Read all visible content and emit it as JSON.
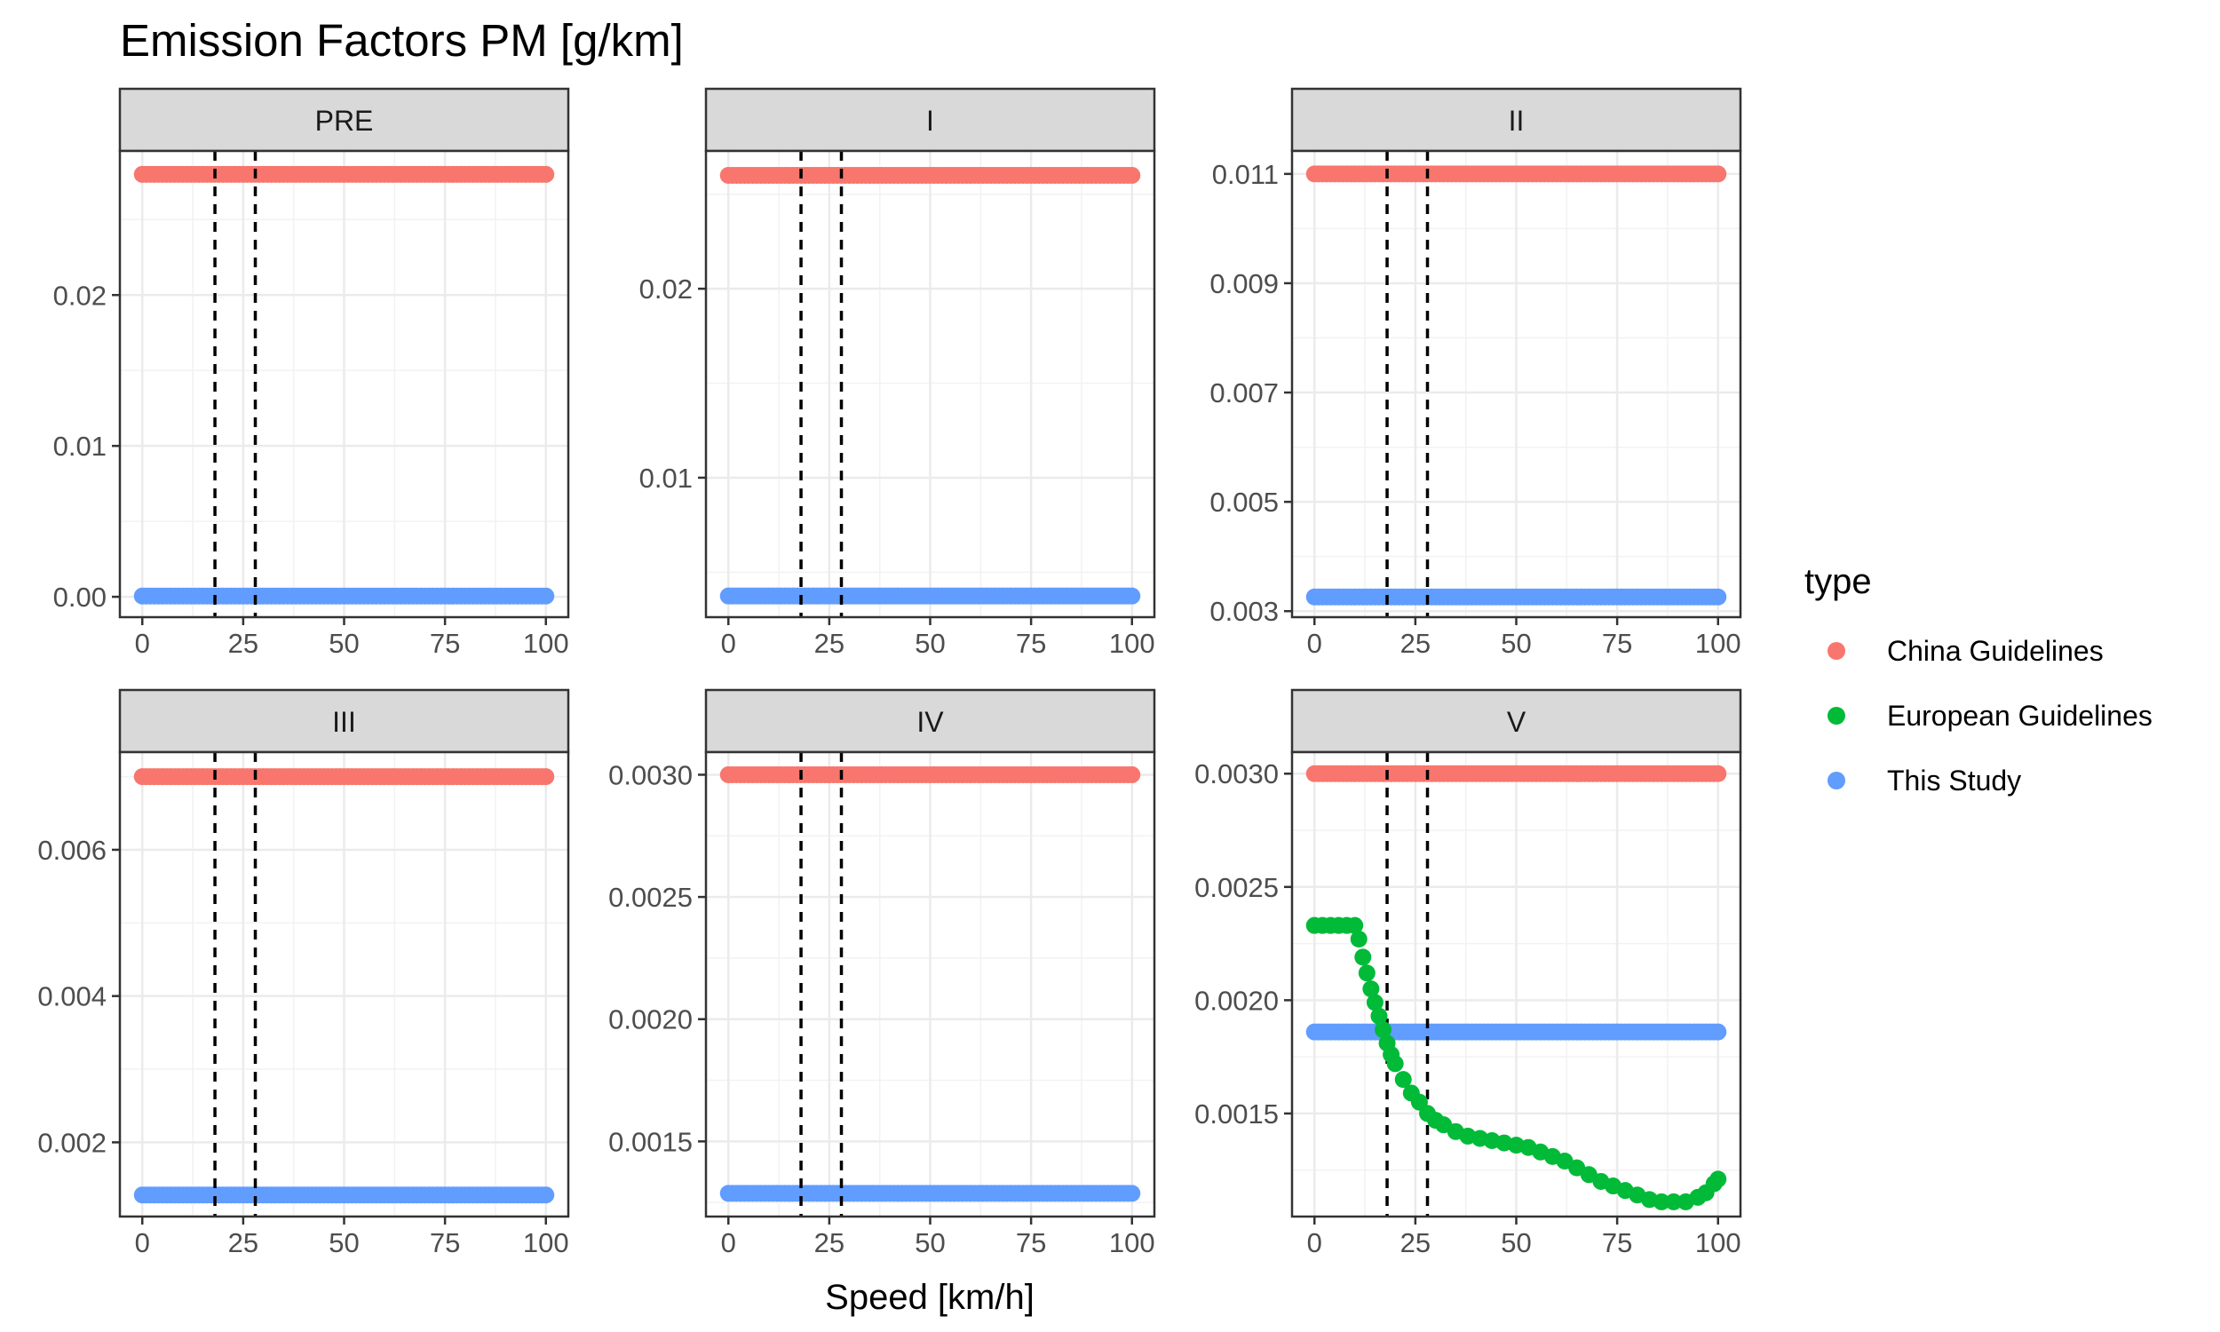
{
  "chart_data": {
    "type": "scatter",
    "title": "Emission Factors PM [g/km]",
    "xlabel": "Speed [km/h]",
    "ylabel": "",
    "grid": true,
    "legend": {
      "title": "type",
      "position": "right",
      "entries": [
        {
          "label": "China Guidelines",
          "color": "#F8766D"
        },
        {
          "label": "European Guidelines",
          "color": "#00BA38"
        },
        {
          "label": "This Study",
          "color": "#619CFF"
        }
      ]
    },
    "x_ticks": [
      0,
      25,
      50,
      75,
      100
    ],
    "x_tick_labels": [
      "0",
      "25",
      "50",
      "75",
      "100"
    ],
    "xlim": [
      0,
      100
    ],
    "reference_lines_x": [
      18,
      28
    ],
    "facets": [
      {
        "label": "PRE",
        "ylim": [
          -0.00135,
          0.02955
        ],
        "y_ticks": [
          0.0,
          0.01,
          0.02
        ],
        "y_tick_labels": [
          "0.00",
          "0.01",
          "0.02"
        ],
        "series": [
          {
            "name": "China Guidelines",
            "color": "#F8766D",
            "constant": 0.028
          },
          {
            "name": "This Study",
            "color": "#619CFF",
            "constant": 5e-05
          }
        ]
      },
      {
        "label": "I",
        "ylim": [
          0.00262,
          0.02729
        ],
        "y_ticks": [
          0.01,
          0.02
        ],
        "y_tick_labels": [
          "0.01",
          "0.02"
        ],
        "series": [
          {
            "name": "China Guidelines",
            "color": "#F8766D",
            "constant": 0.026
          },
          {
            "name": "This Study",
            "color": "#619CFF",
            "constant": 0.00374
          }
        ]
      },
      {
        "label": "II",
        "ylim": [
          0.00289,
          0.01142
        ],
        "y_ticks": [
          0.003,
          0.005,
          0.007,
          0.009,
          0.011
        ],
        "y_tick_labels": [
          "0.003",
          "0.005",
          "0.007",
          "0.009",
          "0.011"
        ],
        "series": [
          {
            "name": "China Guidelines",
            "color": "#F8766D",
            "constant": 0.011
          },
          {
            "name": "This Study",
            "color": "#619CFF",
            "constant": 0.00326
          }
        ]
      },
      {
        "label": "III",
        "ylim": [
          0.000985,
          0.007335
        ],
        "y_ticks": [
          0.002,
          0.004,
          0.006
        ],
        "y_tick_labels": [
          "0.002",
          "0.004",
          "0.006"
        ],
        "series": [
          {
            "name": "China Guidelines",
            "color": "#F8766D",
            "constant": 0.007
          },
          {
            "name": "This Study",
            "color": "#619CFF",
            "constant": 0.00128
          }
        ]
      },
      {
        "label": "IV",
        "ylim": [
          0.0011925,
          0.0030925
        ],
        "y_ticks": [
          0.0015,
          0.002,
          0.0025,
          0.003
        ],
        "y_tick_labels": [
          "0.0015",
          "0.0020",
          "0.0025",
          "0.0030"
        ],
        "series": [
          {
            "name": "China Guidelines",
            "color": "#F8766D",
            "constant": 0.003
          },
          {
            "name": "This Study",
            "color": "#619CFF",
            "constant": 0.0012875
          }
        ]
      },
      {
        "label": "V",
        "ylim": [
          0.001045,
          0.003095
        ],
        "y_ticks": [
          0.0015,
          0.002,
          0.0025,
          0.003
        ],
        "y_tick_labels": [
          "0.0015",
          "0.0020",
          "0.0025",
          "0.0030"
        ],
        "series": [
          {
            "name": "China Guidelines",
            "color": "#F8766D",
            "constant": 0.003
          },
          {
            "name": "This Study",
            "color": "#619CFF",
            "constant": 0.00186
          },
          {
            "name": "European Guidelines",
            "color": "#00BA38",
            "x": [
              0,
              2,
              4,
              6,
              8,
              10,
              11,
              12,
              13,
              14,
              15,
              16,
              17,
              18,
              19,
              20,
              22,
              24,
              26,
              28,
              30,
              32,
              35,
              38,
              41,
              44,
              47,
              50,
              53,
              56,
              59,
              62,
              65,
              68,
              71,
              74,
              77,
              80,
              83,
              86,
              89,
              92,
              95,
              97,
              99,
              100
            ],
            "y": [
              0.00233,
              0.00233,
              0.00233,
              0.00233,
              0.00233,
              0.00233,
              0.00227,
              0.00219,
              0.00212,
              0.00205,
              0.00199,
              0.00193,
              0.00187,
              0.00181,
              0.00176,
              0.00172,
              0.00165,
              0.00159,
              0.00155,
              0.0015,
              0.00147,
              0.00145,
              0.00142,
              0.0014,
              0.00139,
              0.00138,
              0.00137,
              0.00136,
              0.00135,
              0.00133,
              0.00131,
              0.00129,
              0.00126,
              0.00123,
              0.0012,
              0.00118,
              0.00116,
              0.00114,
              0.00112,
              0.00111,
              0.00111,
              0.00111,
              0.00113,
              0.00115,
              0.00119,
              0.00121
            ]
          }
        ]
      }
    ]
  }
}
